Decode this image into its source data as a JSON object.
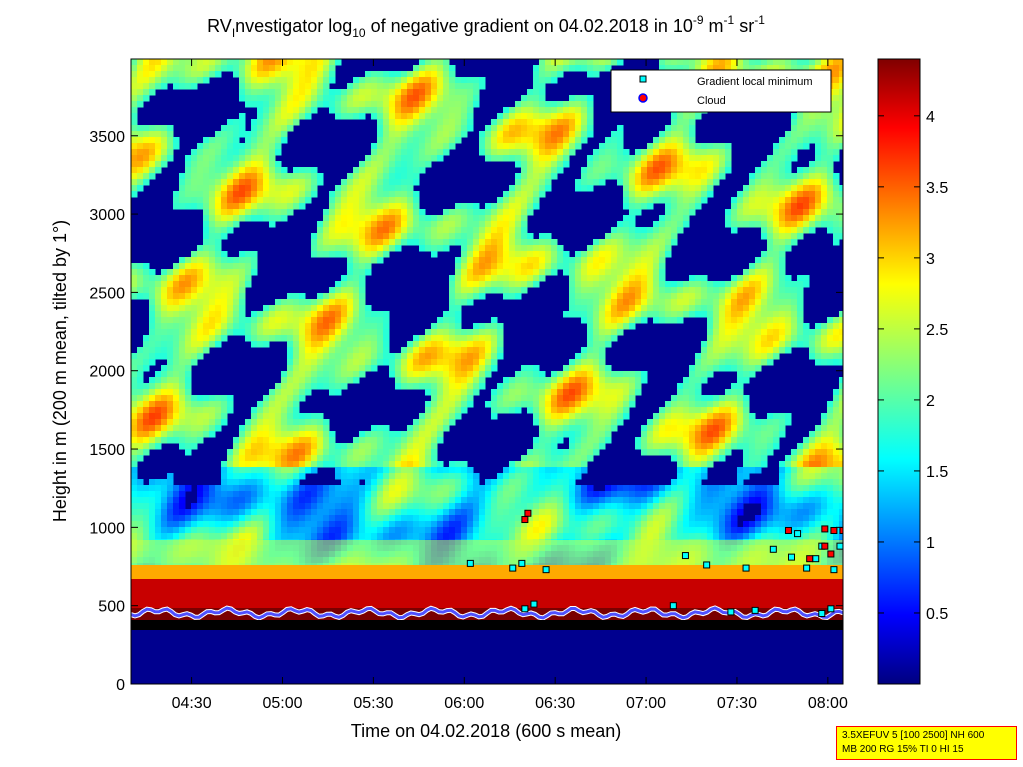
{
  "chart_data": {
    "type": "heatmap",
    "title": {
      "t1": "RV",
      "t2": "I",
      "t3": "nvestigator log",
      "t4": "10",
      "t5": " of negative gradient on 04.02.2018 in 10",
      "t6": "-9",
      "t7": " m",
      "t8": "-1",
      "t9": " sr",
      "t10": "-1"
    },
    "xlabel": "Time on 04.02.2018 (600 s mean)",
    "ylabel": "Height in m (200 m mean, tilted by 1°)",
    "xlim": [
      "04:10",
      "08:05"
    ],
    "ylim": [
      0,
      3990
    ],
    "x_ticks": [
      "04:30",
      "05:00",
      "05:30",
      "06:00",
      "06:30",
      "07:00",
      "07:30",
      "08:00"
    ],
    "y_ticks": [
      "0",
      "500",
      "1000",
      "1500",
      "2000",
      "2500",
      "3000",
      "3500"
    ],
    "colorbar": {
      "colormap": "jet",
      "range": [
        0,
        4.4
      ],
      "ticks": [
        "0.5",
        "1",
        "1.5",
        "2",
        "2.5",
        "3",
        "3.5",
        "4"
      ]
    },
    "legend": {
      "placement": "top-right",
      "entries": [
        {
          "label": "Gradient local minimum",
          "marker": "square",
          "color": "#00ffff"
        },
        {
          "label": "Cloud",
          "marker": "circle",
          "color": "#ff0000"
        }
      ]
    },
    "series": [
      {
        "name": "Gradient local minimum",
        "points": [
          [
            "06:02",
            770
          ],
          [
            "06:16",
            740
          ],
          [
            "06:19",
            770
          ],
          [
            "06:23",
            510
          ],
          [
            "06:27",
            730
          ],
          [
            "07:13",
            820
          ],
          [
            "07:20",
            760
          ],
          [
            "07:33",
            740
          ],
          [
            "07:42",
            860
          ],
          [
            "07:48",
            810
          ],
          [
            "07:50",
            960
          ],
          [
            "07:53",
            740
          ],
          [
            "07:56",
            800
          ],
          [
            "07:58",
            880
          ],
          [
            "08:02",
            730
          ],
          [
            "08:04",
            880
          ],
          [
            "07:28",
            460
          ],
          [
            "07:36",
            470
          ],
          [
            "07:58",
            450
          ],
          [
            "08:01",
            480
          ],
          [
            "06:20",
            480
          ],
          [
            "07:09",
            500
          ]
        ]
      },
      {
        "name": "Cloud",
        "points": [
          [
            "06:20",
            1050
          ],
          [
            "06:21",
            1090
          ],
          [
            "07:47",
            980
          ],
          [
            "07:59",
            990
          ],
          [
            "08:02",
            980
          ],
          [
            "08:05",
            980
          ],
          [
            "07:54",
            800
          ],
          [
            "07:59",
            880
          ],
          [
            "08:01",
            830
          ]
        ]
      }
    ]
  },
  "infobox": {
    "line1": "3.5XEFUV 5 [100 2500] NH 600",
    "line2": "MB 200 RG 15% TI 0 HI 15"
  }
}
